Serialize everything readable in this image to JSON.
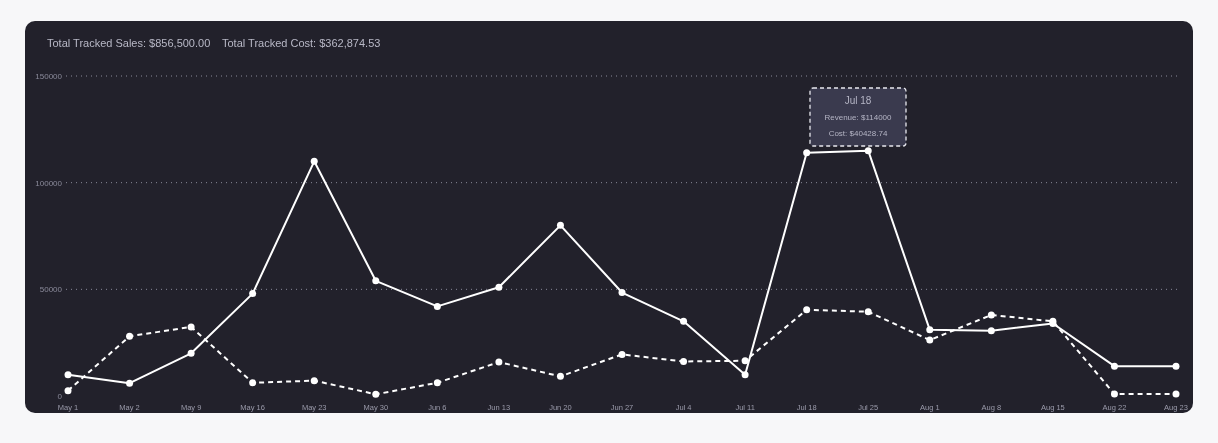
{
  "chart_data": {
    "type": "line",
    "title": "Total Tracked Sales: $856,500.00",
    "subtitle": "Total Tracked Cost: $362,874.53",
    "categories": [
      "May 1",
      "May 2",
      "May 9",
      "May 16",
      "May 23",
      "May 30",
      "Jun 6",
      "Jun 13",
      "Jun 20",
      "Jun 27",
      "Jul 4",
      "Jul 11",
      "Jul 18",
      "Jul 25",
      "Aug 1",
      "Aug 8",
      "Aug 15",
      "Aug 22",
      "Aug 23"
    ],
    "series": [
      {
        "color": "#ffffff",
        "line_style": "solid",
        "values": [
          10000,
          6000,
          20000,
          48000,
          110000,
          54000,
          42000,
          51000,
          80000,
          48500,
          35000,
          10000,
          114000,
          115000,
          31000,
          30600,
          34000,
          14000,
          14000
        ]
      },
      {
        "color": "#ffffff",
        "line_style": "dashed",
        "values": [
          2500,
          28000,
          32400,
          6200,
          7200,
          800,
          6200,
          15900,
          9200,
          19500,
          16200,
          16500,
          40428.74,
          39500,
          26200,
          38000,
          35000,
          900,
          900
        ]
      }
    ],
    "ylim": [
      0,
      150000
    ],
    "yticks": [
      0,
      50000,
      100000,
      150000
    ],
    "grid": "y",
    "marker": "circle",
    "annotations": [
      "Jul 18",
      "Revenue: $114000",
      "Cost: $40428.74"
    ]
  }
}
